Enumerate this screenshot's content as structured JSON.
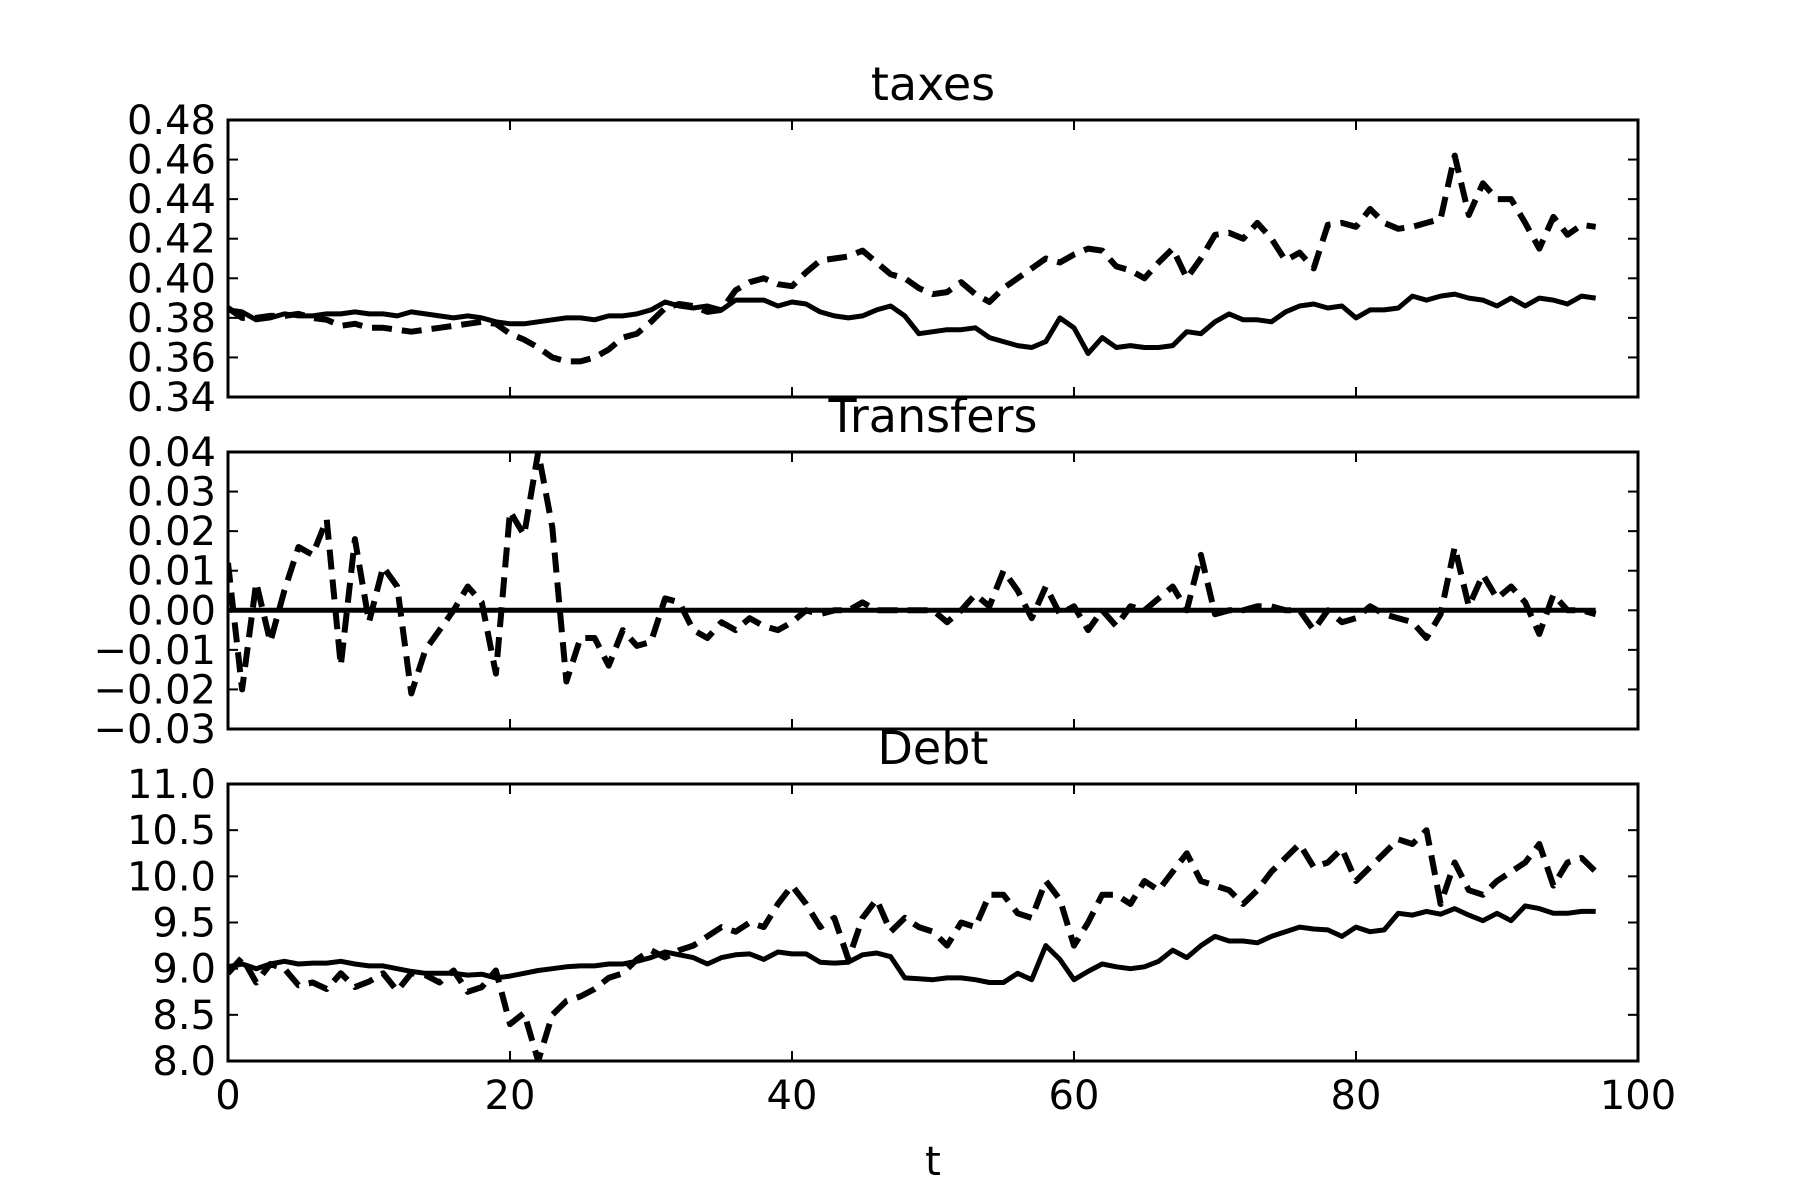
{
  "chart_data": [
    {
      "type": "line",
      "title": "taxes",
      "xlabel": "",
      "ylabel": "",
      "xlim": [
        0,
        100
      ],
      "ylim": [
        0.34,
        0.48
      ],
      "xticks": [
        0,
        20,
        40,
        60,
        80,
        100
      ],
      "yticks": [
        0.34,
        0.36,
        0.38,
        0.4,
        0.42,
        0.44,
        0.46,
        0.48
      ],
      "ytick_labels": [
        "0.34",
        "0.36",
        "0.38",
        "0.40",
        "0.42",
        "0.44",
        "0.46",
        "0.48"
      ],
      "grid": false,
      "series": [
        {
          "style": "solid",
          "color": "#000000",
          "x": [
            0,
            1,
            2,
            3,
            4,
            5,
            6,
            7,
            8,
            9,
            10,
            11,
            12,
            13,
            14,
            15,
            16,
            17,
            18,
            19,
            20,
            21,
            22,
            23,
            24,
            25,
            26,
            27,
            28,
            29,
            30,
            31,
            32,
            33,
            34,
            35,
            36,
            37,
            38,
            39,
            40,
            41,
            42,
            43,
            44,
            45,
            46,
            47,
            48,
            49,
            50,
            51,
            52,
            53,
            54,
            55,
            56,
            57,
            58,
            59,
            60,
            61,
            62,
            63,
            64,
            65,
            66,
            67,
            68,
            69,
            70,
            71,
            72,
            73,
            74,
            75,
            76,
            77,
            78,
            79,
            80,
            81,
            82,
            83,
            84,
            85,
            86,
            87,
            88,
            89,
            90,
            91,
            92,
            93,
            94,
            95,
            96,
            97
          ],
          "y": [
            0.384,
            0.383,
            0.379,
            0.38,
            0.382,
            0.381,
            0.381,
            0.382,
            0.382,
            0.383,
            0.382,
            0.382,
            0.381,
            0.383,
            0.382,
            0.381,
            0.38,
            0.381,
            0.38,
            0.378,
            0.377,
            0.377,
            0.378,
            0.379,
            0.38,
            0.38,
            0.379,
            0.381,
            0.381,
            0.382,
            0.384,
            0.388,
            0.386,
            0.385,
            0.386,
            0.384,
            0.389,
            0.389,
            0.389,
            0.386,
            0.388,
            0.387,
            0.383,
            0.381,
            0.38,
            0.381,
            0.384,
            0.386,
            0.381,
            0.372,
            0.373,
            0.374,
            0.374,
            0.375,
            0.37,
            0.368,
            0.366,
            0.365,
            0.368,
            0.38,
            0.375,
            0.362,
            0.37,
            0.365,
            0.366,
            0.365,
            0.365,
            0.366,
            0.373,
            0.372,
            0.378,
            0.382,
            0.379,
            0.379,
            0.378,
            0.383,
            0.386,
            0.387,
            0.385,
            0.386,
            0.38,
            0.384,
            0.384,
            0.385,
            0.391,
            0.389,
            0.391,
            0.392,
            0.39,
            0.389,
            0.386,
            0.39,
            0.386,
            0.39,
            0.389,
            0.387,
            0.391,
            0.39
          ]
        },
        {
          "style": "dashed",
          "color": "#000000",
          "x": [
            0,
            1,
            2,
            3,
            4,
            5,
            6,
            7,
            8,
            9,
            10,
            11,
            12,
            13,
            14,
            15,
            16,
            17,
            18,
            19,
            20,
            21,
            22,
            23,
            24,
            25,
            26,
            27,
            28,
            29,
            30,
            31,
            32,
            33,
            34,
            35,
            36,
            37,
            38,
            39,
            40,
            41,
            42,
            43,
            44,
            45,
            46,
            47,
            48,
            49,
            50,
            51,
            52,
            53,
            54,
            55,
            56,
            57,
            58,
            59,
            60,
            61,
            62,
            63,
            64,
            65,
            66,
            67,
            68,
            69,
            70,
            71,
            72,
            73,
            74,
            75,
            76,
            77,
            78,
            79,
            80,
            81,
            82,
            83,
            84,
            85,
            86,
            87,
            88,
            89,
            90,
            91,
            92,
            93,
            94,
            95,
            96,
            97
          ],
          "y": [
            0.385,
            0.38,
            0.38,
            0.381,
            0.381,
            0.382,
            0.38,
            0.379,
            0.376,
            0.377,
            0.375,
            0.375,
            0.374,
            0.373,
            0.374,
            0.375,
            0.376,
            0.377,
            0.378,
            0.377,
            0.372,
            0.369,
            0.365,
            0.36,
            0.358,
            0.358,
            0.36,
            0.364,
            0.37,
            0.372,
            0.378,
            0.385,
            0.387,
            0.386,
            0.383,
            0.384,
            0.394,
            0.398,
            0.4,
            0.397,
            0.396,
            0.403,
            0.409,
            0.41,
            0.411,
            0.414,
            0.408,
            0.402,
            0.4,
            0.395,
            0.392,
            0.393,
            0.398,
            0.392,
            0.388,
            0.395,
            0.4,
            0.405,
            0.41,
            0.408,
            0.412,
            0.415,
            0.414,
            0.406,
            0.404,
            0.4,
            0.408,
            0.415,
            0.4,
            0.41,
            0.422,
            0.423,
            0.42,
            0.428,
            0.42,
            0.409,
            0.413,
            0.405,
            0.427,
            0.428,
            0.426,
            0.435,
            0.428,
            0.425,
            0.426,
            0.428,
            0.43,
            0.462,
            0.432,
            0.448,
            0.44,
            0.44,
            0.428,
            0.415,
            0.431,
            0.422,
            0.427,
            0.426
          ]
        }
      ]
    },
    {
      "type": "line",
      "title": "Transfers",
      "xlabel": "",
      "ylabel": "",
      "xlim": [
        0,
        100
      ],
      "ylim": [
        -0.03,
        0.04
      ],
      "xticks": [
        0,
        20,
        40,
        60,
        80,
        100
      ],
      "yticks": [
        -0.03,
        -0.02,
        -0.01,
        0.0,
        0.01,
        0.02,
        0.03,
        0.04
      ],
      "ytick_labels": [
        "−0.03",
        "−0.02",
        "−0.01",
        "0.00",
        "0.01",
        "0.02",
        "0.03",
        "0.04"
      ],
      "grid": false,
      "series": [
        {
          "style": "solid",
          "color": "#000000",
          "x": [
            0,
            97
          ],
          "y": [
            0.0,
            0.0
          ]
        },
        {
          "style": "dashed",
          "color": "#000000",
          "x": [
            0,
            1,
            2,
            3,
            4,
            5,
            6,
            7,
            8,
            9,
            10,
            11,
            12,
            13,
            14,
            15,
            16,
            17,
            18,
            19,
            20,
            21,
            22,
            23,
            24,
            25,
            26,
            27,
            28,
            29,
            30,
            31,
            32,
            33,
            34,
            35,
            36,
            37,
            38,
            39,
            40,
            41,
            42,
            43,
            44,
            45,
            46,
            47,
            48,
            49,
            50,
            51,
            52,
            53,
            54,
            55,
            56,
            57,
            58,
            59,
            60,
            61,
            62,
            63,
            64,
            65,
            66,
            67,
            68,
            69,
            70,
            71,
            72,
            73,
            74,
            75,
            76,
            77,
            78,
            79,
            80,
            81,
            82,
            83,
            84,
            85,
            86,
            87,
            88,
            89,
            90,
            91,
            92,
            93,
            94,
            95,
            96,
            97
          ],
          "y": [
            0.012,
            -0.02,
            0.007,
            -0.008,
            0.005,
            0.016,
            0.014,
            0.023,
            -0.014,
            0.018,
            -0.003,
            0.011,
            0.006,
            -0.021,
            -0.01,
            -0.005,
            0.0,
            0.006,
            0.002,
            -0.016,
            0.025,
            0.019,
            0.04,
            0.021,
            -0.018,
            -0.007,
            -0.007,
            -0.014,
            -0.005,
            -0.009,
            -0.008,
            0.003,
            0.002,
            -0.005,
            -0.007,
            -0.003,
            -0.005,
            -0.002,
            -0.004,
            -0.005,
            -0.003,
            0.0,
            -0.001,
            0.0,
            0.0,
            0.002,
            0.0,
            0.0,
            0.0,
            0.0,
            0.0,
            -0.003,
            0.0,
            0.004,
            0.001,
            0.01,
            0.005,
            -0.002,
            0.006,
            -0.001,
            0.001,
            -0.005,
            0.0,
            -0.004,
            0.001,
            0.0,
            0.003,
            0.006,
            0.0,
            0.014,
            -0.001,
            0.0,
            0.0,
            0.001,
            0.001,
            0.0,
            0.0,
            -0.005,
            0.0,
            -0.003,
            -0.002,
            0.001,
            -0.001,
            -0.002,
            -0.003,
            -0.007,
            -0.001,
            0.016,
            0.001,
            0.009,
            0.003,
            0.006,
            0.002,
            -0.006,
            0.004,
            0.0,
            0.0,
            -0.001
          ]
        }
      ]
    },
    {
      "type": "line",
      "title": "Debt",
      "xlabel": "t",
      "ylabel": "",
      "xlim": [
        0,
        100
      ],
      "ylim": [
        8.0,
        11.0
      ],
      "xticks": [
        0,
        20,
        40,
        60,
        80,
        100
      ],
      "xtick_labels": [
        "0",
        "20",
        "40",
        "60",
        "80",
        "100"
      ],
      "yticks": [
        8.0,
        8.5,
        9.0,
        9.5,
        10.0,
        10.5,
        11.0
      ],
      "ytick_labels": [
        "8.0",
        "8.5",
        "9.0",
        "9.5",
        "10.0",
        "10.5",
        "11.0"
      ],
      "grid": false,
      "series": [
        {
          "style": "solid",
          "color": "#000000",
          "x": [
            0,
            1,
            2,
            3,
            4,
            5,
            6,
            7,
            8,
            9,
            10,
            11,
            12,
            13,
            14,
            15,
            16,
            17,
            18,
            19,
            20,
            21,
            22,
            23,
            24,
            25,
            26,
            27,
            28,
            29,
            30,
            31,
            32,
            33,
            34,
            35,
            36,
            37,
            38,
            39,
            40,
            41,
            42,
            43,
            44,
            45,
            46,
            47,
            48,
            49,
            50,
            51,
            52,
            53,
            54,
            55,
            56,
            57,
            58,
            59,
            60,
            61,
            62,
            63,
            64,
            65,
            66,
            67,
            68,
            69,
            70,
            71,
            72,
            73,
            74,
            75,
            76,
            77,
            78,
            79,
            80,
            81,
            82,
            83,
            84,
            85,
            86,
            87,
            88,
            89,
            90,
            91,
            92,
            93,
            94,
            95,
            96,
            97
          ],
          "y": [
            9.02,
            9.05,
            9.0,
            9.05,
            9.08,
            9.05,
            9.06,
            9.06,
            9.08,
            9.05,
            9.03,
            9.03,
            9.0,
            8.97,
            8.95,
            8.95,
            8.95,
            8.93,
            8.94,
            8.9,
            8.92,
            8.95,
            8.98,
            9.0,
            9.02,
            9.03,
            9.03,
            9.05,
            9.05,
            9.08,
            9.12,
            9.18,
            9.15,
            9.12,
            9.05,
            9.12,
            9.15,
            9.16,
            9.1,
            9.18,
            9.16,
            9.16,
            9.07,
            9.06,
            9.07,
            9.15,
            9.17,
            9.13,
            8.9,
            8.89,
            8.88,
            8.9,
            8.9,
            8.88,
            8.85,
            8.85,
            8.95,
            8.88,
            9.25,
            9.1,
            8.88,
            8.97,
            9.05,
            9.02,
            9.0,
            9.02,
            9.08,
            9.2,
            9.12,
            9.25,
            9.35,
            9.3,
            9.3,
            9.28,
            9.35,
            9.4,
            9.45,
            9.43,
            9.42,
            9.35,
            9.45,
            9.4,
            9.42,
            9.6,
            9.58,
            9.62,
            9.59,
            9.65,
            9.58,
            9.52,
            9.6,
            9.52,
            9.68,
            9.65,
            9.6,
            9.6,
            9.62,
            9.62
          ]
        },
        {
          "style": "dashed",
          "color": "#000000",
          "x": [
            0,
            1,
            2,
            3,
            4,
            5,
            6,
            7,
            8,
            9,
            10,
            11,
            12,
            13,
            14,
            15,
            16,
            17,
            18,
            19,
            20,
            21,
            22,
            23,
            24,
            25,
            26,
            27,
            28,
            29,
            30,
            31,
            32,
            33,
            34,
            35,
            36,
            37,
            38,
            39,
            40,
            41,
            42,
            43,
            44,
            45,
            46,
            47,
            48,
            49,
            50,
            51,
            52,
            53,
            54,
            55,
            56,
            57,
            58,
            59,
            60,
            61,
            62,
            63,
            64,
            65,
            66,
            67,
            68,
            69,
            70,
            71,
            72,
            73,
            74,
            75,
            76,
            77,
            78,
            79,
            80,
            81,
            82,
            83,
            84,
            85,
            86,
            87,
            88,
            89,
            90,
            91,
            92,
            93,
            94,
            95,
            96,
            97
          ],
          "y": [
            8.95,
            9.12,
            8.85,
            9.05,
            9.0,
            8.82,
            8.85,
            8.78,
            8.95,
            8.8,
            8.86,
            8.95,
            8.76,
            8.95,
            8.93,
            8.85,
            8.98,
            8.75,
            8.8,
            8.98,
            8.4,
            8.52,
            8.0,
            8.5,
            8.65,
            8.7,
            8.78,
            8.9,
            8.95,
            9.1,
            9.2,
            9.12,
            9.2,
            9.25,
            9.35,
            9.45,
            9.4,
            9.5,
            9.45,
            9.7,
            9.9,
            9.7,
            9.45,
            9.55,
            9.1,
            9.55,
            9.75,
            9.4,
            9.55,
            9.45,
            9.4,
            9.25,
            9.5,
            9.45,
            9.8,
            9.8,
            9.6,
            9.55,
            9.95,
            9.75,
            9.25,
            9.5,
            9.8,
            9.8,
            9.7,
            9.95,
            9.85,
            10.05,
            10.25,
            9.95,
            9.9,
            9.85,
            9.7,
            9.85,
            10.05,
            10.2,
            10.35,
            10.1,
            10.15,
            10.3,
            9.95,
            10.1,
            10.25,
            10.4,
            10.35,
            10.5,
            9.7,
            10.15,
            9.85,
            9.8,
            9.95,
            10.05,
            10.15,
            10.35,
            9.9,
            10.15,
            10.2,
            10.05
          ]
        }
      ]
    }
  ]
}
